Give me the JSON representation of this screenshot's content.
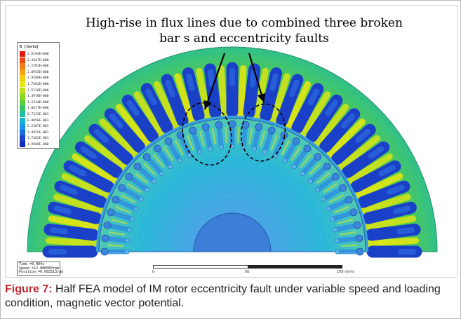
{
  "annotation": {
    "line1": "High-rise in flux lines due to combined three broken",
    "line2": "bar s and eccentricity faults"
  },
  "legend": {
    "title": "B [tesla]",
    "entries": [
      {
        "value": "2.6194E+000",
        "color": "#e8190f"
      },
      {
        "value": "2.4447E+000",
        "color": "#ee4a12"
      },
      {
        "value": "2.2701E+000",
        "color": "#f27d14"
      },
      {
        "value": "2.0955E+000",
        "color": "#f5a515"
      },
      {
        "value": "1.9209E+000",
        "color": "#f5cd14"
      },
      {
        "value": "1.7462E+000",
        "color": "#e8e716"
      },
      {
        "value": "1.5716E+000",
        "color": "#bce31a"
      },
      {
        "value": "1.3970E+000",
        "color": "#8fd820"
      },
      {
        "value": "1.2224E+000",
        "color": "#5fcf3a"
      },
      {
        "value": "1.0477E+000",
        "color": "#38c46a"
      },
      {
        "value": "8.7312E-001",
        "color": "#1fc0a2"
      },
      {
        "value": "6.9850E-001",
        "color": "#14b4d2"
      },
      {
        "value": "5.2387E-001",
        "color": "#1596e8"
      },
      {
        "value": "3.4925E-001",
        "color": "#1a6ee0"
      },
      {
        "value": "1.7462E-001",
        "color": "#1b46cc"
      },
      {
        "value": "1.9569E-008",
        "color": "#142cb0"
      }
    ]
  },
  "info": {
    "time": "Time   =0.004s",
    "speed": "Speed  =12.000000rpm",
    "position": "Position =0.002513rad"
  },
  "scalebar": {
    "tick0": "0",
    "tick1": "50",
    "tick2": "100 (mm)"
  },
  "caption": {
    "label": "Figure 7:",
    "text": " Half FEA model of IM rotor eccentricity fault under variable speed and loading condition, magnetic vector potential."
  },
  "colors": {
    "stator_outer": "#36c46b",
    "stator_mid": "#7fd534",
    "rotor_bg": "#2cb2d9",
    "slot": "#1b40c8",
    "tooth": "#cfe31c",
    "shaft": "#2e8ede"
  }
}
